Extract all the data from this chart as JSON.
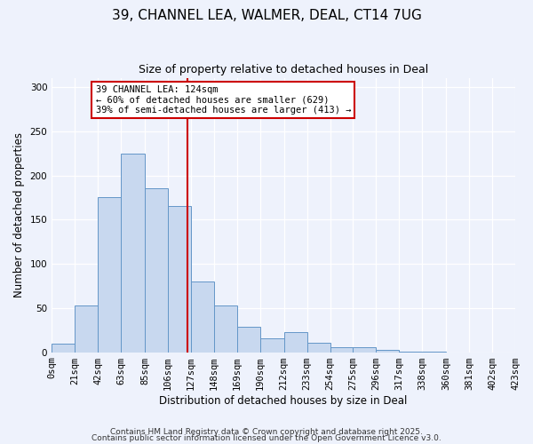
{
  "title": "39, CHANNEL LEA, WALMER, DEAL, CT14 7UG",
  "subtitle": "Size of property relative to detached houses in Deal",
  "xlabel": "Distribution of detached houses by size in Deal",
  "ylabel": "Number of detached properties",
  "bin_edges": [
    0,
    21,
    42,
    63,
    85,
    106,
    127,
    148,
    169,
    190,
    212,
    233,
    254,
    275,
    296,
    317,
    338,
    360,
    381,
    402,
    423
  ],
  "counts": [
    10,
    53,
    175,
    225,
    185,
    165,
    80,
    53,
    29,
    16,
    23,
    11,
    6,
    6,
    3,
    1,
    1,
    0,
    0
  ],
  "bar_facecolor": "#c8d8ef",
  "bar_edgecolor": "#6496c8",
  "vline_x": 124,
  "vline_color": "#cc0000",
  "annotation_text": "39 CHANNEL LEA: 124sqm\n← 60% of detached houses are smaller (629)\n39% of semi-detached houses are larger (413) →",
  "annotation_box_edgecolor": "#cc0000",
  "annotation_box_facecolor": "#ffffff",
  "ylim": [
    0,
    310
  ],
  "yticks": [
    0,
    50,
    100,
    150,
    200,
    250,
    300
  ],
  "tick_labels": [
    "0sqm",
    "21sqm",
    "42sqm",
    "63sqm",
    "85sqm",
    "106sqm",
    "127sqm",
    "148sqm",
    "169sqm",
    "190sqm",
    "212sqm",
    "233sqm",
    "254sqm",
    "275sqm",
    "296sqm",
    "317sqm",
    "338sqm",
    "360sqm",
    "381sqm",
    "402sqm",
    "423sqm"
  ],
  "footer1": "Contains HM Land Registry data © Crown copyright and database right 2025.",
  "footer2": "Contains public sector information licensed under the Open Government Licence v3.0.",
  "background_color": "#eef2fc",
  "grid_color": "#ffffff",
  "title_fontsize": 11,
  "subtitle_fontsize": 9,
  "axis_label_fontsize": 8.5,
  "tick_fontsize": 7.5,
  "footer_fontsize": 6.5
}
